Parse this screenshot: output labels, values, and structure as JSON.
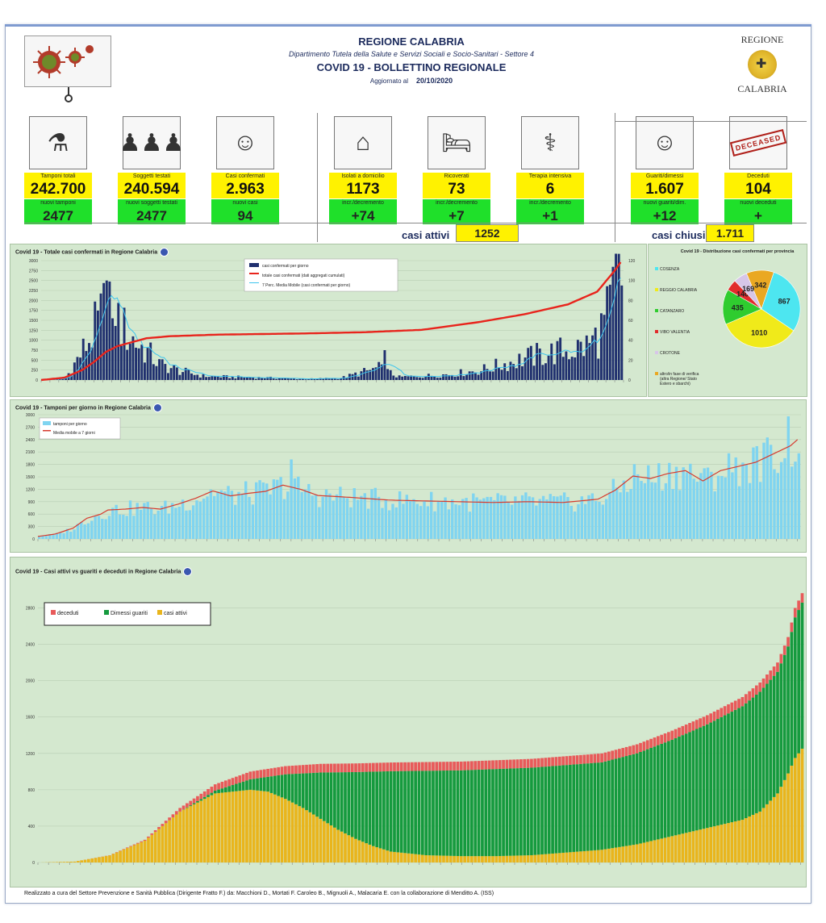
{
  "header": {
    "region_title": "REGIONE CALABRIA",
    "department": "Dipartimento Tutela della Salute e Servizi Sociali e Socio-Sanitari - Settore 4",
    "bulletin_title": "COVID 19 - BOLLETTINO REGIONALE",
    "updated_label": "Aggiornato al",
    "updated_date": "20/10/2020",
    "logo_top": "REGIONE",
    "logo_bottom": "CALABRIA"
  },
  "tiles": [
    {
      "label": "Tamponi totali",
      "value": "242.700",
      "sub_label": "nuovi tamponi",
      "sub_value": "2477",
      "icon": "lab-icon"
    },
    {
      "label": "Soggetti testati",
      "value": "240.594",
      "sub_label": "nuovi soggetti testati",
      "sub_value": "2477",
      "icon": "crowd-icon"
    },
    {
      "label": "Casi confermati",
      "value": "2.963",
      "sub_label": "nuovi casi",
      "sub_value": "94",
      "icon": "virus-person-icon"
    },
    {
      "label": "Isolati a domicilio",
      "value": "1173",
      "sub_label": "incr./decremento",
      "sub_value": "+74",
      "icon": "house-icon"
    },
    {
      "label": "Ricoverati",
      "value": "73",
      "sub_label": "incr./decremento",
      "sub_value": "+7",
      "icon": "hospital-bed-icon"
    },
    {
      "label": "Terapia intensiva",
      "value": "6",
      "sub_label": "incr./decremento",
      "sub_value": "+1",
      "icon": "icu-bed-icon"
    },
    {
      "label": "Guariti/dimessi",
      "value": "1.607",
      "sub_label": "nuovi guariti/dim.",
      "sub_value": "+12",
      "icon": "recovered-person-icon"
    },
    {
      "label": "Deceduti",
      "value": "104",
      "sub_label": "nuovi deceduti",
      "sub_value": "+",
      "icon": "deceased-stamp-icon"
    }
  ],
  "deceased_stamp": "DECEASED",
  "summary": {
    "active_label": "casi attivi",
    "active_value": "1252",
    "closed_label": "casi chiusi",
    "closed_value": "1.711"
  },
  "footer": "Realizzato a cura del Settore Prevenzione e Sanità Pubblica (Dirigente Fratto F.) da: Macchioni D., Mortati F. Caroleo B., Mignuoli A., Malacaria E. con la collaborazione di Menditto A. (ISS)",
  "chart_data": [
    {
      "type": "bar",
      "title": "Covid 19 - Totale casi confermati in Regione Calabria",
      "legend": [
        "casi confermati per giorno",
        "totale casi confermati (dati aggregati cumulati)",
        "7 Perc. Media Mobile (casi confermati per giorno)"
      ],
      "legend_placement": "top-center",
      "y_ticks": [
        "0",
        "250",
        "500",
        "750",
        "1000",
        "1250",
        "1500",
        "1750",
        "2000",
        "2250",
        "2500",
        "2750",
        "3000"
      ],
      "y2_ticks": [
        "0",
        "20",
        "40",
        "60",
        "80",
        "100",
        "120"
      ],
      "ylim": [
        0,
        3000
      ],
      "y2lim": [
        0,
        120
      ],
      "colors": {
        "bars": "#1f2f6e",
        "cumulative": "#e8241c",
        "moving_avg": "#3cc4ee"
      },
      "daily_anchors": [
        [
          0,
          0
        ],
        [
          8,
          2
        ],
        [
          14,
          30
        ],
        [
          20,
          62
        ],
        [
          24,
          95
        ],
        [
          26,
          60
        ],
        [
          28,
          50
        ],
        [
          32,
          38
        ],
        [
          36,
          28
        ],
        [
          40,
          16
        ],
        [
          46,
          10
        ],
        [
          55,
          4
        ],
        [
          65,
          3
        ],
        [
          80,
          2
        ],
        [
          90,
          1
        ],
        [
          102,
          2
        ],
        [
          115,
          12
        ],
        [
          122,
          3
        ],
        [
          130,
          4
        ],
        [
          140,
          6
        ],
        [
          150,
          10
        ],
        [
          160,
          18
        ],
        [
          168,
          24
        ],
        [
          175,
          28
        ],
        [
          180,
          30
        ],
        [
          186,
          34
        ],
        [
          190,
          45
        ],
        [
          194,
          70
        ],
        [
          196,
          102
        ],
        [
          198,
          88
        ]
      ],
      "cumulative_anchors": [
        [
          0,
          0
        ],
        [
          8,
          6
        ],
        [
          14,
          25
        ],
        [
          18,
          45
        ],
        [
          22,
          70
        ],
        [
          26,
          85
        ],
        [
          30,
          93
        ],
        [
          36,
          105
        ],
        [
          44,
          110
        ],
        [
          60,
          114
        ],
        [
          90,
          117
        ],
        [
          110,
          120
        ],
        [
          130,
          126
        ],
        [
          150,
          146
        ],
        [
          165,
          165
        ],
        [
          180,
          190
        ],
        [
          190,
          222
        ],
        [
          196,
          275
        ],
        [
          198,
          296
        ]
      ],
      "gridlines": true
    },
    {
      "type": "pie",
      "title": "Covid 19 - Distribuzione casi confermati per provincia",
      "labels": [
        "COSENZA",
        "REGGIO CALABRIA",
        "CATANZARO",
        "VIBO VALENTIA",
        "CROTONE",
        "altro/in fase di verifica (altra Regione/ Stato Estero e sbarchi)"
      ],
      "values": [
        867,
        1010,
        435,
        140,
        169,
        342
      ],
      "colors": [
        "#4de6f0",
        "#f0ea1a",
        "#2fcc2f",
        "#e12b2b",
        "#d7c6e8",
        "#eaa822"
      ],
      "legend_placement": "left"
    },
    {
      "type": "bar",
      "title": "Covid 19 - Tamponi per giorno in Regione Calabria",
      "legend": [
        "tamponi per giorno",
        "Media mobile a 7 giorni"
      ],
      "legend_placement": "top-left",
      "y_ticks": [
        "0",
        "300",
        "600",
        "900",
        "1200",
        "1500",
        "1800",
        "2100",
        "2400",
        "2700",
        "3000"
      ],
      "ylim": [
        0,
        3000
      ],
      "colors": {
        "bars": "#7fd4f0",
        "moving_avg": "#d63a2e"
      },
      "avg_anchors": [
        [
          0,
          60
        ],
        [
          5,
          120
        ],
        [
          10,
          260
        ],
        [
          14,
          500
        ],
        [
          18,
          600
        ],
        [
          20,
          700
        ],
        [
          25,
          720
        ],
        [
          30,
          760
        ],
        [
          35,
          720
        ],
        [
          40,
          840
        ],
        [
          45,
          980
        ],
        [
          50,
          1160
        ],
        [
          55,
          1040
        ],
        [
          60,
          1100
        ],
        [
          65,
          1150
        ],
        [
          70,
          1300
        ],
        [
          75,
          1200
        ],
        [
          80,
          1050
        ],
        [
          90,
          1000
        ],
        [
          100,
          940
        ],
        [
          110,
          920
        ],
        [
          120,
          900
        ],
        [
          130,
          880
        ],
        [
          140,
          900
        ],
        [
          150,
          880
        ],
        [
          160,
          960
        ],
        [
          165,
          1180
        ],
        [
          170,
          1520
        ],
        [
          175,
          1460
        ],
        [
          180,
          1580
        ],
        [
          185,
          1650
        ],
        [
          190,
          1400
        ],
        [
          195,
          1650
        ],
        [
          200,
          1750
        ],
        [
          205,
          1850
        ],
        [
          210,
          2050
        ],
        [
          215,
          2250
        ],
        [
          217,
          2400
        ]
      ],
      "gridlines": true
    },
    {
      "type": "area",
      "title": "Covid 19 - Casi attivi vs guariti e deceduti in Regione Calabria",
      "legend": [
        "deceduti",
        "Dimessi guariti",
        "casi attivi"
      ],
      "legend_placement": "top-left",
      "y_ticks": [
        "0",
        "400",
        "800",
        "1200",
        "1600",
        "2000",
        "2400",
        "2800"
      ],
      "ylim": [
        0,
        3000
      ],
      "colors": {
        "deceduti": "#e85a5a",
        "guariti": "#159a3e",
        "attivi": "#e9b51c"
      },
      "total_anchors": [
        [
          0,
          0
        ],
        [
          10,
          10
        ],
        [
          20,
          80
        ],
        [
          30,
          250
        ],
        [
          40,
          600
        ],
        [
          50,
          860
        ],
        [
          60,
          1000
        ],
        [
          70,
          1060
        ],
        [
          80,
          1085
        ],
        [
          90,
          1090
        ],
        [
          100,
          1100
        ],
        [
          120,
          1110
        ],
        [
          140,
          1140
        ],
        [
          160,
          1200
        ],
        [
          170,
          1300
        ],
        [
          180,
          1450
        ],
        [
          190,
          1620
        ],
        [
          200,
          1820
        ],
        [
          205,
          1980
        ],
        [
          210,
          2200
        ],
        [
          213,
          2480
        ],
        [
          215,
          2800
        ],
        [
          217,
          2963
        ]
      ],
      "active_anchors": [
        [
          0,
          0
        ],
        [
          10,
          10
        ],
        [
          20,
          78
        ],
        [
          30,
          240
        ],
        [
          40,
          560
        ],
        [
          50,
          760
        ],
        [
          60,
          800
        ],
        [
          65,
          780
        ],
        [
          70,
          700
        ],
        [
          75,
          600
        ],
        [
          80,
          480
        ],
        [
          85,
          360
        ],
        [
          90,
          260
        ],
        [
          95,
          180
        ],
        [
          100,
          120
        ],
        [
          110,
          80
        ],
        [
          120,
          70
        ],
        [
          130,
          70
        ],
        [
          140,
          80
        ],
        [
          150,
          110
        ],
        [
          160,
          140
        ],
        [
          170,
          200
        ],
        [
          180,
          290
        ],
        [
          190,
          380
        ],
        [
          200,
          470
        ],
        [
          205,
          560
        ],
        [
          210,
          760
        ],
        [
          213,
          980
        ],
        [
          215,
          1150
        ],
        [
          217,
          1252
        ]
      ],
      "deaths_anchors": [
        [
          0,
          0
        ],
        [
          20,
          2
        ],
        [
          30,
          10
        ],
        [
          40,
          40
        ],
        [
          50,
          70
        ],
        [
          60,
          85
        ],
        [
          80,
          95
        ],
        [
          140,
          97
        ],
        [
          170,
          99
        ],
        [
          200,
          101
        ],
        [
          217,
          104
        ]
      ],
      "gridlines": true
    }
  ]
}
